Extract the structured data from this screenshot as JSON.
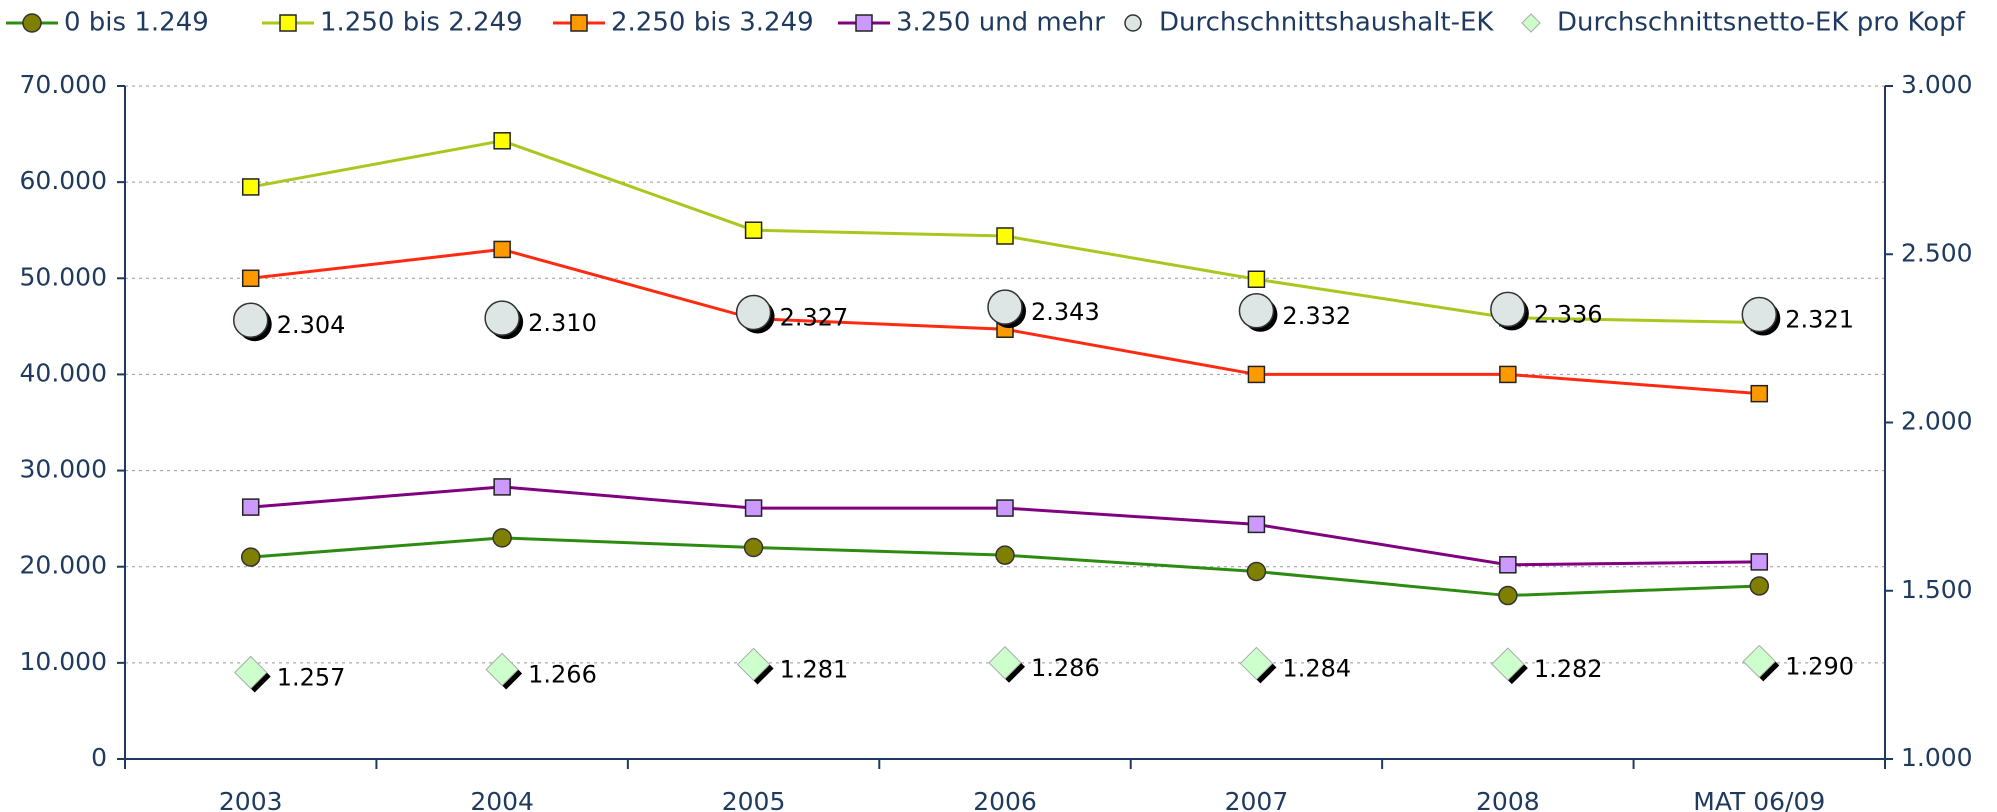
{
  "chart_data": {
    "type": "line",
    "categories": [
      "2003",
      "2004",
      "2005",
      "2006",
      "2007",
      "2008",
      "MAT 06/09"
    ],
    "ylim": [
      0,
      70000
    ],
    "yticks": [
      {
        "value": 0,
        "label": "0"
      },
      {
        "value": 10000,
        "label": "10.000"
      },
      {
        "value": 20000,
        "label": "20.000"
      },
      {
        "value": 30000,
        "label": "30.000"
      },
      {
        "value": 40000,
        "label": "40.000"
      },
      {
        "value": 50000,
        "label": "50.000"
      },
      {
        "value": 60000,
        "label": "60.000"
      },
      {
        "value": 70000,
        "label": "70.000"
      }
    ],
    "y2lim": [
      1000,
      3000
    ],
    "y2ticks": [
      {
        "value": 1000,
        "label": "1.000"
      },
      {
        "value": 1500,
        "label": "1.500"
      },
      {
        "value": 2000,
        "label": "2.000"
      },
      {
        "value": 2500,
        "label": "2.500"
      },
      {
        "value": 3000,
        "label": "3.000"
      }
    ],
    "grid": true,
    "legend": "top",
    "series": [
      {
        "name": "0 bis 1.249",
        "color": "#2e8b12",
        "marker": "circle",
        "marker_color": "#808000",
        "values": [
          21000,
          23000,
          22000,
          21200,
          19500,
          17000,
          18000
        ]
      },
      {
        "name": "1.250 bis 2.249",
        "color": "#a8c81e",
        "marker": "square",
        "marker_color": "#ffff00",
        "values": [
          59500,
          64300,
          55000,
          54400,
          49900,
          45900,
          45400
        ]
      },
      {
        "name": "2.250 bis 3.249",
        "color": "#ff2a10",
        "marker": "square",
        "marker_color": "#ff9900",
        "values": [
          50000,
          53000,
          45800,
          44700,
          40000,
          40000,
          38000
        ]
      },
      {
        "name": "3.250 und mehr",
        "color": "#800080",
        "marker": "square",
        "marker_color": "#cc99ff",
        "values": [
          26200,
          28300,
          26100,
          26100,
          24400,
          20200,
          20500
        ]
      },
      {
        "name": "Durchschnittshaushalt-EK",
        "axis": "y2",
        "marker": "bigcircle",
        "marker_color": "#dde5e5",
        "values": [
          2304,
          2310,
          2327,
          2343,
          2332,
          2336,
          2321
        ],
        "value_labels": [
          "2.304",
          "2.310",
          "2.327",
          "2.343",
          "2.332",
          "2.336",
          "2.321"
        ]
      },
      {
        "name": "Durchschnittsnetto-EK pro Kopf",
        "axis": "y2",
        "marker": "diamond",
        "marker_color": "#ccffcc",
        "values": [
          1257,
          1266,
          1281,
          1286,
          1284,
          1282,
          1290
        ],
        "value_labels": [
          "1.257",
          "1.266",
          "1.281",
          "1.286",
          "1.284",
          "1.282",
          "1.290"
        ]
      }
    ]
  }
}
